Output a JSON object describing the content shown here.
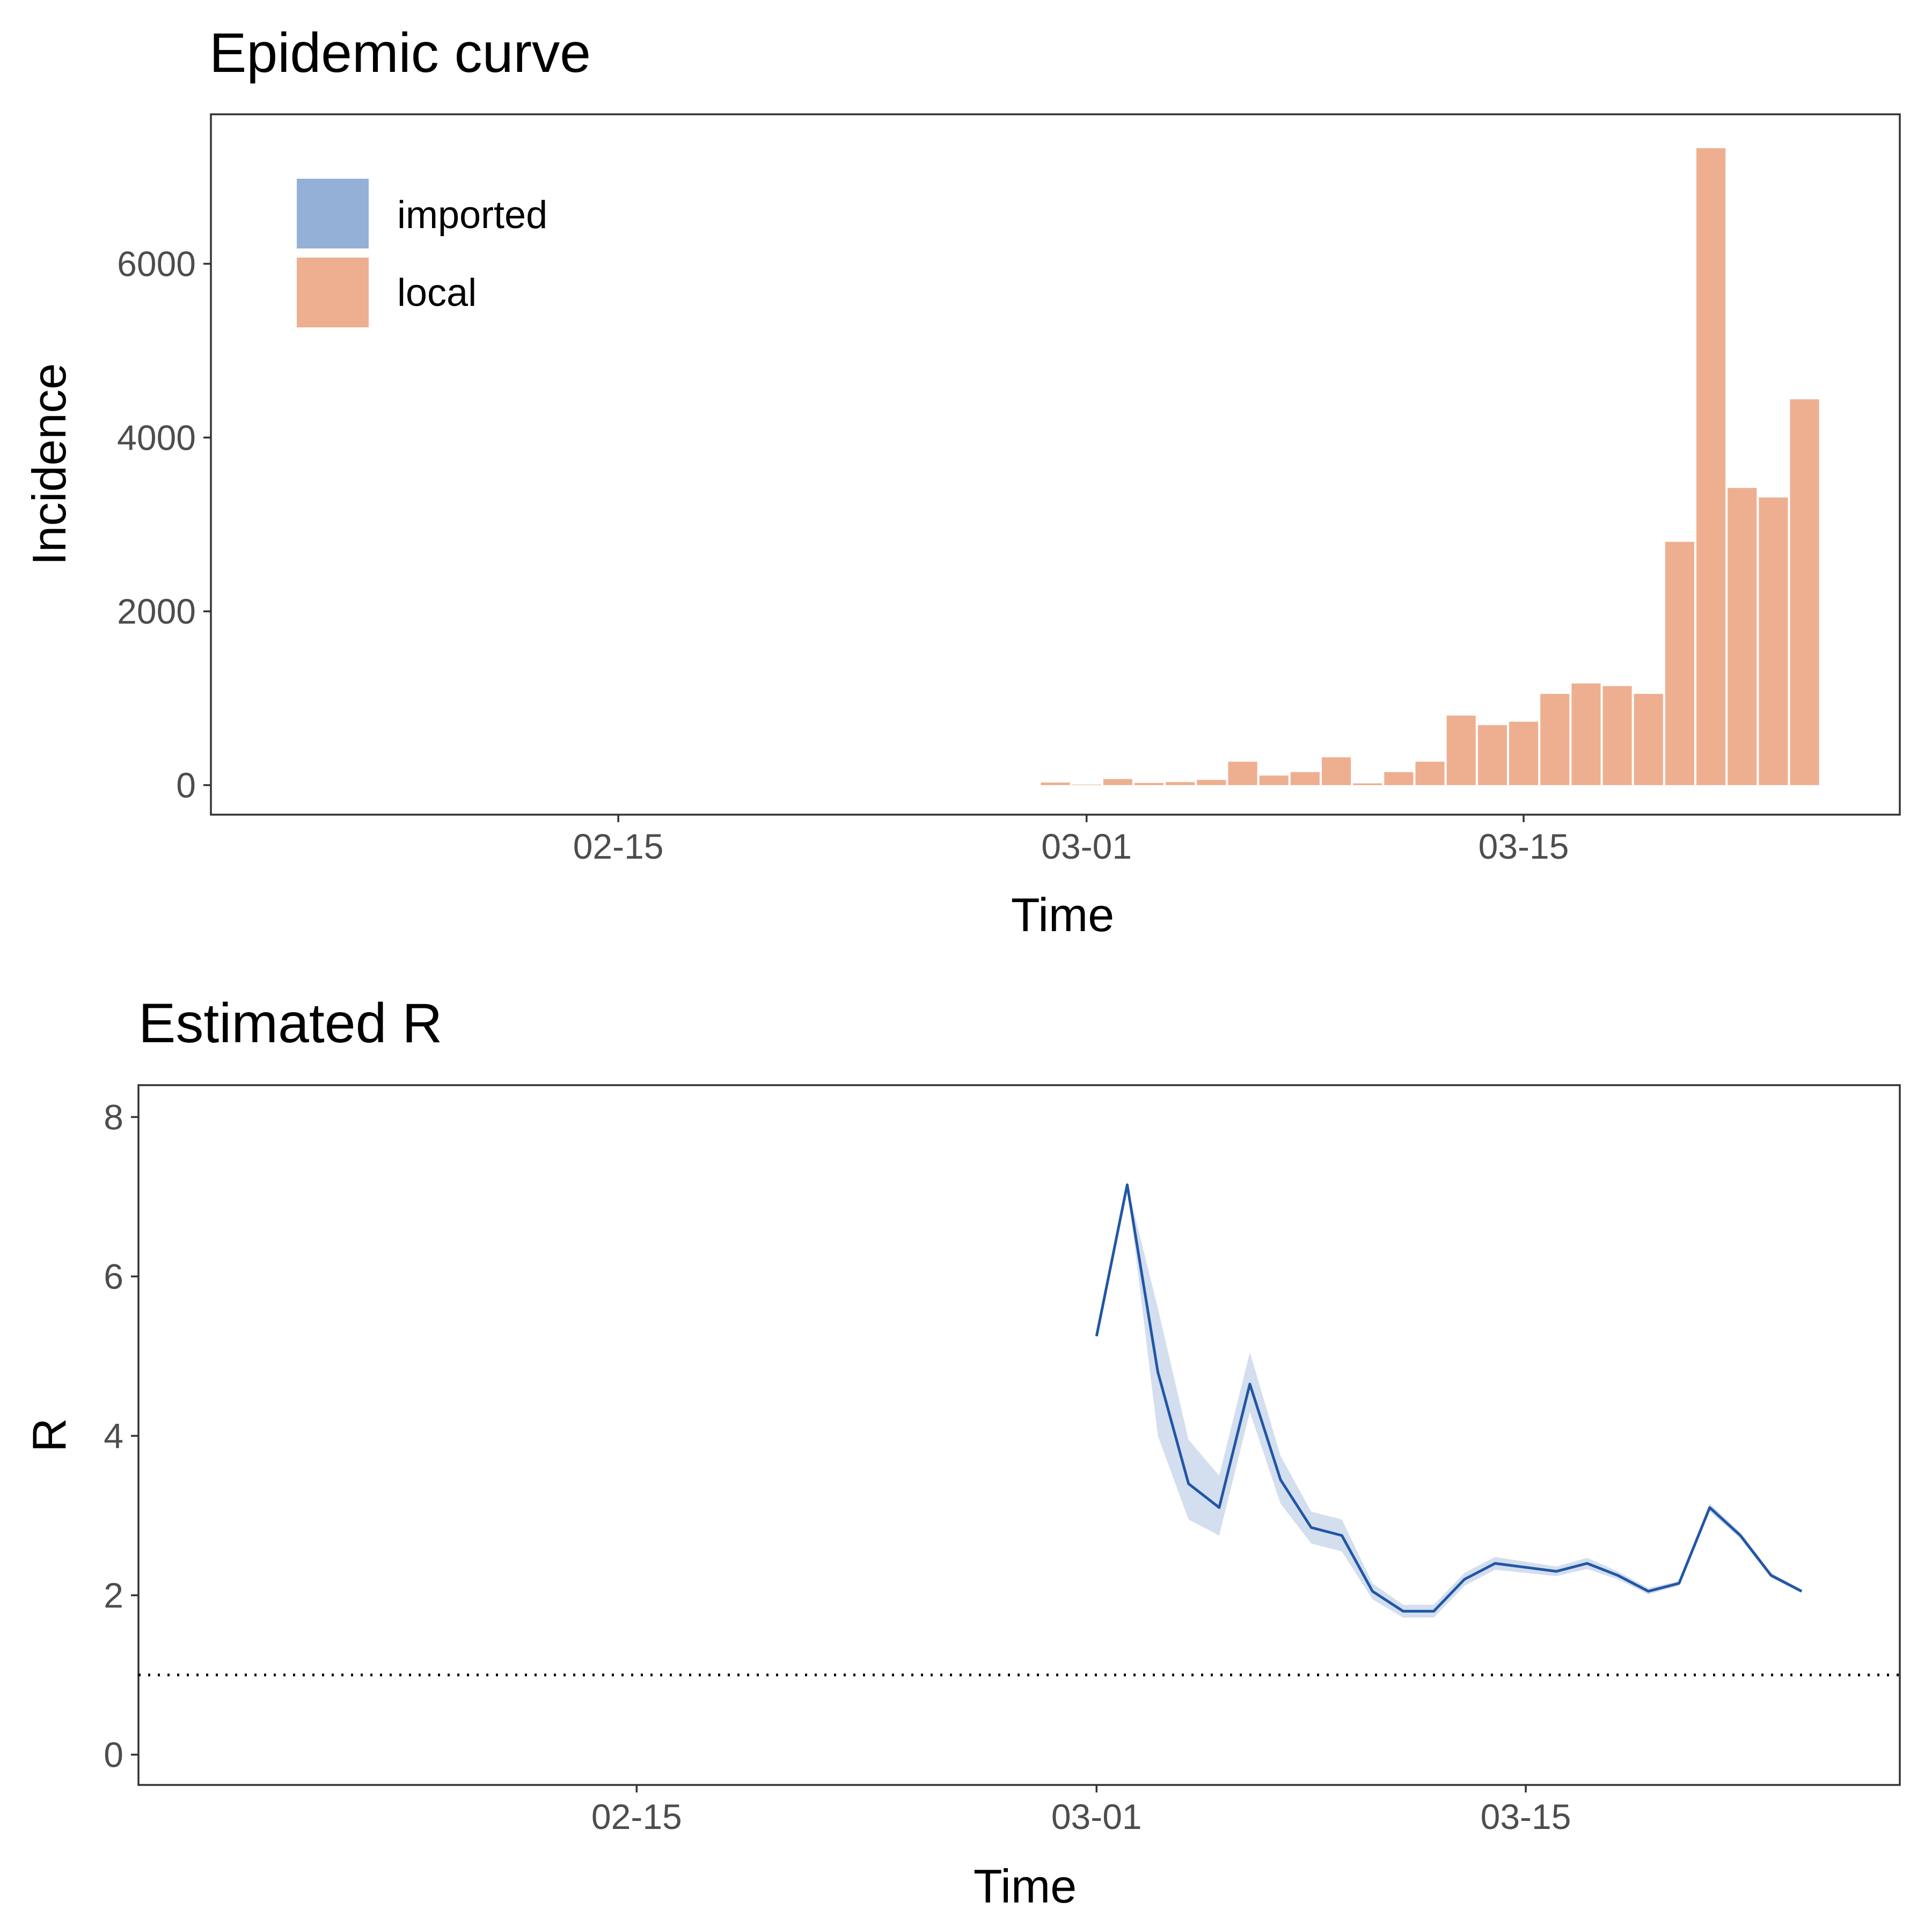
{
  "chart_data": [
    {
      "type": "bar",
      "title": "Epidemic curve",
      "xlabel": "Time",
      "ylabel": "Incidence",
      "x_ticks": [
        "02-15",
        "03-01",
        "03-15"
      ],
      "y_ticks": [
        "0",
        "2000",
        "4000",
        "6000"
      ],
      "ylim": [
        -340,
        7720
      ],
      "grid": false,
      "legend_position": "top-left",
      "legend": [
        {
          "name": "imported",
          "color": "#95b0d6"
        },
        {
          "name": "local",
          "color": "#eeaf90"
        }
      ],
      "series": [
        {
          "name": "local",
          "x": [
            "02-29",
            "03-01",
            "03-02",
            "03-03",
            "03-04",
            "03-05",
            "03-06",
            "03-07",
            "03-08",
            "03-09",
            "03-10",
            "03-11",
            "03-12",
            "03-13",
            "03-14",
            "03-15",
            "03-16",
            "03-17",
            "03-18",
            "03-19",
            "03-20",
            "03-21",
            "03-22",
            "03-23",
            "03-24"
          ],
          "values": [
            30,
            5,
            70,
            25,
            35,
            60,
            270,
            110,
            150,
            320,
            20,
            150,
            270,
            800,
            690,
            730,
            1050,
            1170,
            1140,
            1050,
            2800,
            7330,
            3420,
            3310,
            4440
          ]
        },
        {
          "name": "imported",
          "x": [],
          "values": []
        }
      ]
    },
    {
      "type": "line",
      "title": "Estimated R",
      "xlabel": "Time",
      "ylabel": "R",
      "x_ticks": [
        "02-15",
        "03-01",
        "03-15"
      ],
      "y_ticks": [
        "0",
        "2",
        "4",
        "6",
        "8"
      ],
      "ylim": [
        -0.38,
        8.4
      ],
      "grid": false,
      "reference_line": {
        "y": 1,
        "style": "dotted"
      },
      "series": [
        {
          "x": [
            "03-01",
            "03-02",
            "03-03",
            "03-04",
            "03-05",
            "03-06",
            "03-07",
            "03-08",
            "03-09",
            "03-10",
            "03-11",
            "03-12",
            "03-13",
            "03-14",
            "03-15",
            "03-16",
            "03-17",
            "03-18",
            "03-19",
            "03-20",
            "03-21",
            "03-22",
            "03-23",
            "03-24"
          ],
          "values": [
            5.25,
            7.15,
            4.8,
            3.4,
            3.1,
            4.65,
            3.45,
            2.85,
            2.75,
            2.05,
            1.8,
            1.8,
            2.2,
            2.4,
            2.35,
            2.3,
            2.4,
            2.25,
            2.05,
            2.15,
            3.1,
            2.75,
            2.25,
            2.05
          ],
          "lower": [
            5.25,
            7.15,
            4.0,
            2.95,
            2.75,
            4.3,
            3.15,
            2.65,
            2.55,
            1.95,
            1.72,
            1.72,
            2.12,
            2.32,
            2.28,
            2.24,
            2.33,
            2.2,
            2.01,
            2.12,
            3.05,
            2.71,
            2.22,
            2.03
          ],
          "upper": [
            5.25,
            7.15,
            5.6,
            3.95,
            3.5,
            5.05,
            3.75,
            3.05,
            2.95,
            2.15,
            1.88,
            1.88,
            2.28,
            2.48,
            2.42,
            2.36,
            2.47,
            2.3,
            2.09,
            2.18,
            3.15,
            2.79,
            2.28,
            2.07
          ],
          "line_color": "#2156a5",
          "band_color": "#d3deee"
        }
      ]
    }
  ]
}
